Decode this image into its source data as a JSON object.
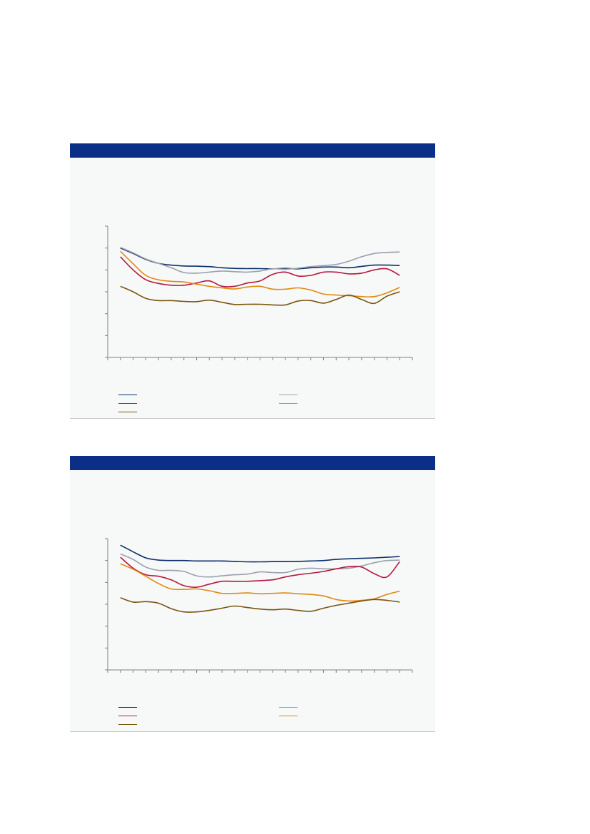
{
  "panels": [
    {
      "title": "",
      "subtitle": "",
      "legend": [
        {
          "name": "",
          "color": "#0b2f6b"
        },
        {
          "name": "",
          "color": "#9aa1ad"
        },
        {
          "name": "",
          "color": "#b5173f"
        },
        {
          "name": "",
          "color": "#e08a12"
        },
        {
          "name": "",
          "color": "#7a5410"
        }
      ]
    },
    {
      "title": "",
      "subtitle": "",
      "legend": [
        {
          "name": "",
          "color": "#0b2f6b"
        },
        {
          "name": "",
          "color": "#9aa1ad"
        },
        {
          "name": "",
          "color": "#b5173f"
        },
        {
          "name": "",
          "color": "#e08a12"
        },
        {
          "name": "",
          "color": "#7a5410"
        }
      ]
    }
  ],
  "chart_data": [
    {
      "type": "line",
      "ylim": [
        0,
        6
      ],
      "xlim": [
        0,
        24
      ],
      "y_ticks": [
        0,
        1,
        2,
        3,
        4,
        5,
        6
      ],
      "x_tick_count": 24,
      "series": [
        {
          "color": "#0b2f6b",
          "x": [
            1,
            2,
            3,
            4,
            5,
            6,
            7,
            8,
            9,
            10,
            11,
            12,
            13,
            14,
            15,
            16,
            17,
            18,
            19,
            20,
            21,
            22,
            23
          ],
          "values": [
            5.0,
            4.75,
            4.48,
            4.3,
            4.22,
            4.18,
            4.17,
            4.15,
            4.1,
            4.07,
            4.06,
            4.06,
            4.05,
            4.07,
            4.05,
            4.1,
            4.13,
            4.13,
            4.1,
            4.16,
            4.22,
            4.22,
            4.2
          ]
        },
        {
          "color": "#9aa1ad",
          "x": [
            1,
            2,
            3,
            4,
            5,
            6,
            7,
            8,
            9,
            10,
            11,
            12,
            13,
            14,
            15,
            16,
            17,
            18,
            19,
            20,
            21,
            22,
            23
          ],
          "values": [
            5.03,
            4.78,
            4.5,
            4.3,
            4.1,
            3.88,
            3.85,
            3.9,
            3.95,
            3.92,
            3.9,
            3.95,
            4.05,
            4.03,
            4.08,
            4.15,
            4.2,
            4.25,
            4.4,
            4.6,
            4.75,
            4.8,
            4.82
          ]
        },
        {
          "color": "#b5173f",
          "x": [
            1,
            2,
            3,
            4,
            5,
            6,
            7,
            8,
            9,
            10,
            11,
            12,
            13,
            14,
            15,
            16,
            17,
            18,
            19,
            20,
            21,
            22,
            23
          ],
          "values": [
            4.6,
            4.0,
            3.55,
            3.38,
            3.3,
            3.3,
            3.4,
            3.5,
            3.25,
            3.25,
            3.4,
            3.5,
            3.8,
            3.9,
            3.72,
            3.75,
            3.9,
            3.9,
            3.82,
            3.85,
            4.0,
            4.05,
            3.75
          ]
        },
        {
          "color": "#e08a12",
          "x": [
            1,
            2,
            3,
            4,
            5,
            6,
            7,
            8,
            9,
            10,
            11,
            12,
            13,
            14,
            15,
            16,
            17,
            18,
            19,
            20,
            21,
            22,
            23
          ],
          "values": [
            4.85,
            4.28,
            3.75,
            3.55,
            3.48,
            3.45,
            3.35,
            3.25,
            3.18,
            3.13,
            3.22,
            3.25,
            3.12,
            3.12,
            3.18,
            3.08,
            2.9,
            2.85,
            2.82,
            2.78,
            2.78,
            2.95,
            3.2
          ]
        },
        {
          "color": "#7a5410",
          "x": [
            1,
            2,
            3,
            4,
            5,
            6,
            7,
            8,
            9,
            10,
            11,
            12,
            13,
            14,
            15,
            16,
            17,
            18,
            19,
            20,
            21,
            22,
            23
          ],
          "values": [
            3.25,
            3.0,
            2.7,
            2.6,
            2.6,
            2.56,
            2.55,
            2.62,
            2.52,
            2.42,
            2.43,
            2.43,
            2.4,
            2.4,
            2.58,
            2.6,
            2.48,
            2.65,
            2.85,
            2.65,
            2.47,
            2.8,
            3.0
          ]
        }
      ]
    },
    {
      "type": "line",
      "ylim": [
        0,
        6
      ],
      "xlim": [
        0,
        24
      ],
      "y_ticks": [
        0,
        1,
        2,
        3,
        4,
        5,
        6
      ],
      "x_tick_count": 24,
      "series": [
        {
          "color": "#0b2f6b",
          "x": [
            1,
            2,
            3,
            4,
            5,
            6,
            7,
            8,
            9,
            10,
            11,
            12,
            13,
            14,
            15,
            16,
            17,
            18,
            19,
            20,
            21,
            22,
            23
          ],
          "values": [
            5.7,
            5.4,
            5.12,
            5.02,
            5.0,
            5.0,
            4.98,
            4.98,
            4.98,
            4.96,
            4.94,
            4.94,
            4.95,
            4.95,
            4.96,
            4.98,
            5.0,
            5.05,
            5.08,
            5.1,
            5.12,
            5.15,
            5.18
          ]
        },
        {
          "color": "#9aa1ad",
          "x": [
            1,
            2,
            3,
            4,
            5,
            6,
            7,
            8,
            9,
            10,
            11,
            12,
            13,
            14,
            15,
            16,
            17,
            18,
            19,
            20,
            21,
            22,
            23
          ],
          "values": [
            5.3,
            5.05,
            4.7,
            4.55,
            4.55,
            4.5,
            4.3,
            4.25,
            4.3,
            4.35,
            4.38,
            4.48,
            4.45,
            4.45,
            4.6,
            4.65,
            4.62,
            4.62,
            4.65,
            4.75,
            4.9,
            5.0,
            5.02
          ]
        },
        {
          "color": "#b5173f",
          "x": [
            1,
            2,
            3,
            4,
            5,
            6,
            7,
            8,
            9,
            10,
            11,
            12,
            13,
            14,
            15,
            16,
            17,
            18,
            19,
            20,
            21,
            22,
            23
          ],
          "values": [
            5.15,
            4.65,
            4.35,
            4.28,
            4.12,
            3.85,
            3.78,
            3.92,
            4.05,
            4.05,
            4.05,
            4.08,
            4.12,
            4.25,
            4.35,
            4.42,
            4.5,
            4.62,
            4.72,
            4.7,
            4.4,
            4.25,
            4.95
          ]
        },
        {
          "color": "#e08a12",
          "x": [
            1,
            2,
            3,
            4,
            5,
            6,
            7,
            8,
            9,
            10,
            11,
            12,
            13,
            14,
            15,
            16,
            17,
            18,
            19,
            20,
            21,
            22,
            23
          ],
          "values": [
            4.85,
            4.6,
            4.28,
            3.95,
            3.7,
            3.68,
            3.7,
            3.62,
            3.5,
            3.5,
            3.52,
            3.48,
            3.5,
            3.52,
            3.48,
            3.45,
            3.38,
            3.22,
            3.15,
            3.18,
            3.25,
            3.45,
            3.6
          ]
        },
        {
          "color": "#7a5410",
          "x": [
            1,
            2,
            3,
            4,
            5,
            6,
            7,
            8,
            9,
            10,
            11,
            12,
            13,
            14,
            15,
            16,
            17,
            18,
            19,
            20,
            21,
            22,
            23
          ],
          "values": [
            3.3,
            3.1,
            3.12,
            3.05,
            2.8,
            2.65,
            2.65,
            2.72,
            2.82,
            2.92,
            2.85,
            2.78,
            2.75,
            2.78,
            2.72,
            2.68,
            2.82,
            2.95,
            3.05,
            3.15,
            3.22,
            3.18,
            3.1
          ]
        }
      ]
    }
  ]
}
